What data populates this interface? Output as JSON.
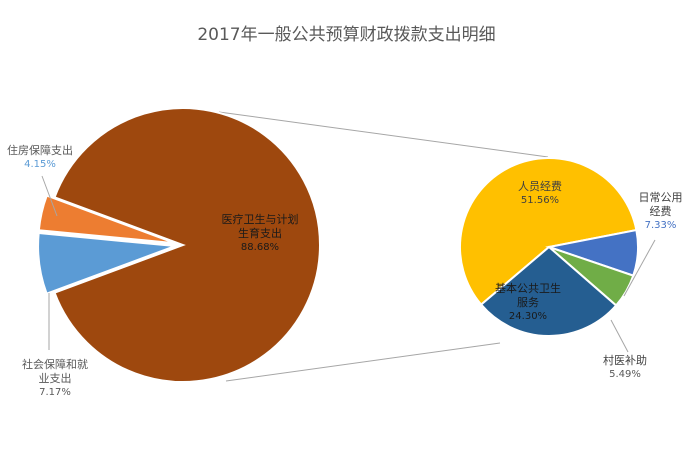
{
  "title": "2017年一般公共预算财政拨款支出明细",
  "chart_data": {
    "type": "pie",
    "subtype": "pie-of-pie",
    "title": "2017年一般公共预算财政拨款支出明细",
    "primary": {
      "categories": [
        "医疗卫生与计划生育支出",
        "社会保障和就业支出",
        "住房保障支出"
      ],
      "values": [
        88.68,
        7.17,
        4.15
      ],
      "labels": [
        "88.68%",
        "7.17%",
        "4.15%"
      ],
      "colors": [
        "#9E480E",
        "#5B9BD5",
        "#ED7D31"
      ]
    },
    "secondary": {
      "parent": "医疗卫生与计划生育支出",
      "categories": [
        "人员经费",
        "日常公用经费",
        "村医补助",
        "基本公共卫生服务"
      ],
      "values": [
        51.56,
        7.33,
        5.49,
        24.3
      ],
      "labels": [
        "51.56%",
        "7.33%",
        "5.49%",
        "24.30%"
      ],
      "colors": [
        "#FFC000",
        "#4472C4",
        "#70AD47",
        "#255E91"
      ]
    },
    "legend": "none",
    "data_labels": "category name and percentage"
  },
  "labels": {
    "main": {
      "name_line1": "医疗卫生与计划",
      "name_line2": "生育支出",
      "pct": "88.68%"
    },
    "social": {
      "name_line1": "社会保障和就",
      "name_line2": "业支出",
      "pct": "7.17%"
    },
    "housing": {
      "name": "住房保障支出",
      "pct": "4.15%"
    },
    "staff": {
      "name": "人员经费",
      "pct": "51.56%"
    },
    "public": {
      "name_line1": "日常公用",
      "name_line2": "经费",
      "pct": "7.33%"
    },
    "village": {
      "name": "村医补助",
      "pct": "5.49%"
    },
    "basic": {
      "name_line1": "基本公共卫生",
      "name_line2": "服务",
      "pct": "24.30%"
    }
  }
}
